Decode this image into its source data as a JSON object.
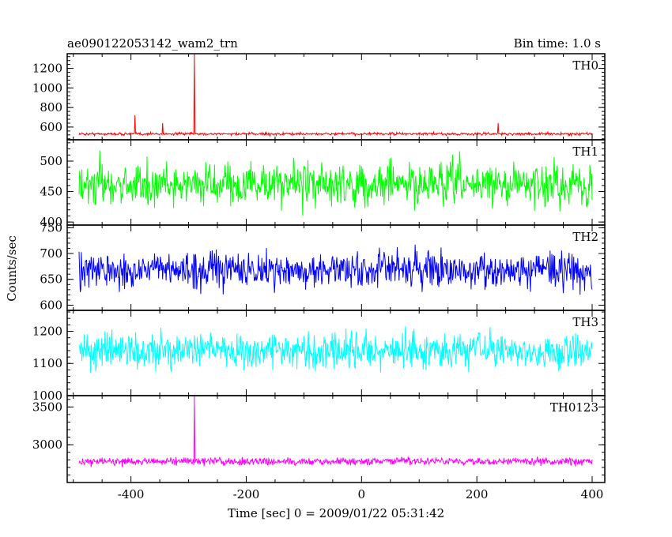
{
  "chart_data": {
    "type": "line",
    "title": "ae090122053142_wam2_trn",
    "subtitle": "Bin time: 1.0 s",
    "xlabel": "Time [sec] 0 = 2009/01/22 05:31:42",
    "ylabel": "Counts/sec",
    "xlim": [
      -500,
      400
    ],
    "xticks": [
      -400,
      -200,
      0,
      200,
      400
    ],
    "grid": false,
    "panels": [
      {
        "name": "TH0",
        "color": "#ff0000",
        "ylim": [
          470,
          1350
        ],
        "yticks": [
          600,
          800,
          1000,
          1200
        ],
        "baseline": 530,
        "noise": 12,
        "spikes": [
          {
            "x": -393,
            "y": 720
          },
          {
            "x": -345,
            "y": 640
          },
          {
            "x": -290,
            "y": 1350
          },
          {
            "x": 237,
            "y": 640
          }
        ]
      },
      {
        "name": "TH1",
        "color": "#00ff00",
        "ylim": [
          395,
          535
        ],
        "yticks": [
          400,
          450,
          500
        ],
        "baseline": 462,
        "noise": 30,
        "spikes": []
      },
      {
        "name": "TH2",
        "color": "#0000ff",
        "ylim": [
          590,
          755
        ],
        "yticks": [
          600,
          650,
          700,
          750
        ],
        "baseline": 668,
        "noise": 30,
        "spikes": []
      },
      {
        "name": "TH3",
        "color": "#00ffff",
        "ylim": [
          1000,
          1265
        ],
        "yticks": [
          1000,
          1100,
          1200
        ],
        "baseline": 1140,
        "noise": 48,
        "spikes": []
      },
      {
        "name": "TH0123",
        "color": "#ff00ff",
        "ylim": [
          2500,
          3650
        ],
        "yticks": [
          3000,
          3500
        ],
        "baseline": 2780,
        "noise": 45,
        "spikes": [
          {
            "x": -290,
            "y": 3650
          }
        ]
      }
    ]
  }
}
